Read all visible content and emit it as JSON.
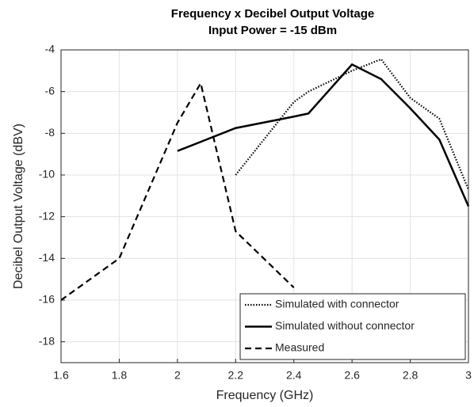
{
  "chart_data": {
    "type": "line",
    "title": [
      "Frequency x Decibel Output Voltage",
      "Input Power = -15 dBm"
    ],
    "xlabel": "Frequency (GHz)",
    "ylabel": "Decibel Output Voltage (dBV)",
    "xlim": [
      1.6,
      3
    ],
    "ylim": [
      -19,
      -4
    ],
    "xticks": [
      1.6,
      1.8,
      2,
      2.2,
      2.4,
      2.6,
      2.8,
      3
    ],
    "yticks": [
      -4,
      -6,
      -8,
      -10,
      -12,
      -14,
      -16,
      -18
    ],
    "grid": true,
    "legend": "lower right",
    "series": [
      {
        "name": "Simulated with connector",
        "color": "#000000",
        "linestyle": "dotted",
        "x": [
          2.2,
          2.4,
          2.45,
          2.6,
          2.7,
          2.8,
          2.9,
          3.0
        ],
        "values": [
          -10,
          -6.5,
          -6,
          -5,
          -4.45,
          -6.3,
          -7.3,
          -10.7
        ]
      },
      {
        "name": "Simulated without connector",
        "color": "#000000",
        "linestyle": "solid",
        "x": [
          2.0,
          2.2,
          2.4,
          2.45,
          2.6,
          2.7,
          2.8,
          2.9,
          3.0
        ],
        "values": [
          -8.85,
          -7.75,
          -7.2,
          -7.05,
          -4.7,
          -5.4,
          -6.8,
          -8.3,
          -11.5
        ]
      },
      {
        "name": "Measured",
        "color": "#000000",
        "linestyle": "dashed",
        "x": [
          1.6,
          1.8,
          2.0,
          2.08,
          2.2,
          2.4
        ],
        "values": [
          -16,
          -14,
          -7.5,
          -5.6,
          -12.7,
          -15.4
        ]
      }
    ]
  }
}
